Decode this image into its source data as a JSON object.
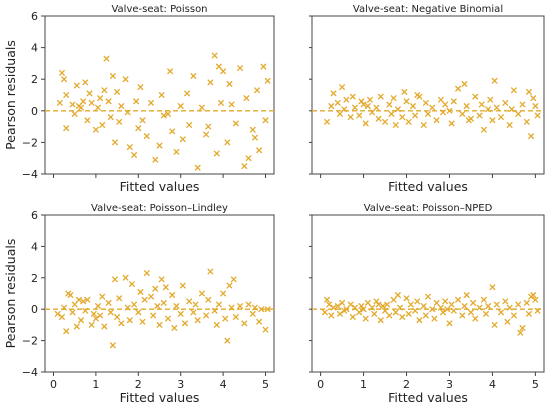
{
  "colors": {
    "marker": "#E3A92B",
    "refline": "#E3A92B",
    "axes": "#444444"
  },
  "chart_data": [
    {
      "type": "scatter",
      "title": "Valve-seat: Poisson",
      "xlabel": "Fitted values",
      "ylabel": "Pearson residuals",
      "xlim": [
        -0.2,
        5.2
      ],
      "ylim": [
        -4,
        6
      ],
      "xticks": [],
      "yticks": [
        -4,
        -2,
        0,
        2,
        4,
        6
      ],
      "reference_line_y": 0,
      "grid": false,
      "points": [
        [
          0.15,
          0.5
        ],
        [
          0.2,
          2.4
        ],
        [
          0.25,
          2.0
        ],
        [
          0.3,
          -1.1
        ],
        [
          0.3,
          1.0
        ],
        [
          0.45,
          0.4
        ],
        [
          0.5,
          -0.2
        ],
        [
          0.55,
          1.6
        ],
        [
          0.6,
          0.3
        ],
        [
          0.65,
          0.2
        ],
        [
          0.7,
          0.6
        ],
        [
          0.75,
          1.8
        ],
        [
          0.8,
          -0.6
        ],
        [
          0.85,
          1.1
        ],
        [
          0.9,
          0.5
        ],
        [
          1.0,
          -1.2
        ],
        [
          1.05,
          0.2
        ],
        [
          1.1,
          0.8
        ],
        [
          1.15,
          -0.9
        ],
        [
          1.2,
          1.3
        ],
        [
          1.25,
          3.3
        ],
        [
          1.3,
          0.6
        ],
        [
          1.4,
          2.2
        ],
        [
          1.45,
          -2.0
        ],
        [
          1.5,
          1.2
        ],
        [
          1.55,
          -0.7
        ],
        [
          1.6,
          0.3
        ],
        [
          1.7,
          2.0
        ],
        [
          1.75,
          -0.1
        ],
        [
          1.8,
          -2.3
        ],
        [
          1.9,
          -2.8
        ],
        [
          1.95,
          0.6
        ],
        [
          2.0,
          -1.1
        ],
        [
          2.05,
          1.5
        ],
        [
          2.1,
          -0.6
        ],
        [
          2.2,
          -1.6
        ],
        [
          2.3,
          0.5
        ],
        [
          2.4,
          -3.1
        ],
        [
          2.5,
          -2.2
        ],
        [
          2.55,
          1.0
        ],
        [
          2.6,
          -0.3
        ],
        [
          2.7,
          -0.2
        ],
        [
          2.8,
          -1.3
        ],
        [
          2.9,
          -2.6
        ],
        [
          3.0,
          0.3
        ],
        [
          3.05,
          -1.8
        ],
        [
          3.15,
          1.1
        ],
        [
          3.2,
          -0.9
        ],
        [
          3.3,
          2.2
        ],
        [
          3.4,
          -3.6
        ],
        [
          3.5,
          0.2
        ],
        [
          3.6,
          -1.5
        ],
        [
          3.65,
          -1.0
        ],
        [
          3.7,
          1.8
        ],
        [
          3.8,
          3.5
        ],
        [
          3.85,
          -2.7
        ],
        [
          3.9,
          2.8
        ],
        [
          3.95,
          0.5
        ],
        [
          4.0,
          2.5
        ],
        [
          4.1,
          -2.0
        ],
        [
          4.15,
          1.7
        ],
        [
          4.2,
          0.4
        ],
        [
          4.3,
          -0.8
        ],
        [
          4.4,
          2.7
        ],
        [
          4.5,
          -3.5
        ],
        [
          4.6,
          -3.0
        ],
        [
          4.7,
          -1.2
        ],
        [
          4.75,
          -1.7
        ],
        [
          4.8,
          1.3
        ],
        [
          4.85,
          -2.5
        ],
        [
          4.95,
          2.8
        ],
        [
          5.0,
          -0.6
        ],
        [
          5.05,
          1.9
        ],
        [
          4.55,
          0.8
        ],
        [
          2.75,
          2.5
        ],
        [
          1.35,
          -0.4
        ]
      ]
    },
    {
      "type": "scatter",
      "title": "Valve-seat: Negative Binomial",
      "xlabel": "Fitted values",
      "ylabel": "",
      "xlim": [
        -0.2,
        5.2
      ],
      "ylim": [
        -4,
        6
      ],
      "xticks": [],
      "yticks": [],
      "reference_line_y": 0,
      "grid": false,
      "points": [
        [
          0.15,
          -0.7
        ],
        [
          0.25,
          0.3
        ],
        [
          0.3,
          1.1
        ],
        [
          0.4,
          0.5
        ],
        [
          0.45,
          -0.2
        ],
        [
          0.5,
          1.5
        ],
        [
          0.55,
          0.1
        ],
        [
          0.6,
          0.7
        ],
        [
          0.7,
          -0.4
        ],
        [
          0.75,
          0.9
        ],
        [
          0.8,
          0.2
        ],
        [
          0.9,
          -0.3
        ],
        [
          0.95,
          0.6
        ],
        [
          1.0,
          0.4
        ],
        [
          1.05,
          -0.8
        ],
        [
          1.1,
          0.3
        ],
        [
          1.15,
          0.7
        ],
        [
          1.2,
          -0.1
        ],
        [
          1.3,
          0.2
        ],
        [
          1.35,
          -0.5
        ],
        [
          1.4,
          0.9
        ],
        [
          1.5,
          -0.7
        ],
        [
          1.6,
          0.4
        ],
        [
          1.65,
          -0.2
        ],
        [
          1.7,
          0.8
        ],
        [
          1.8,
          0.1
        ],
        [
          1.9,
          -0.4
        ],
        [
          1.95,
          1.2
        ],
        [
          2.0,
          0.6
        ],
        [
          2.05,
          -0.7
        ],
        [
          2.15,
          0.3
        ],
        [
          2.2,
          -0.3
        ],
        [
          2.3,
          0.9
        ],
        [
          2.4,
          -0.9
        ],
        [
          2.45,
          0.5
        ],
        [
          2.5,
          -0.2
        ],
        [
          2.6,
          0.2
        ],
        [
          2.7,
          -0.6
        ],
        [
          2.8,
          0.7
        ],
        [
          2.85,
          -0.1
        ],
        [
          2.9,
          0.4
        ],
        [
          3.0,
          0.0
        ],
        [
          3.05,
          -0.8
        ],
        [
          3.1,
          0.6
        ],
        [
          3.2,
          1.4
        ],
        [
          3.3,
          -0.2
        ],
        [
          3.35,
          1.7
        ],
        [
          3.4,
          0.3
        ],
        [
          3.5,
          -0.5
        ],
        [
          3.6,
          0.9
        ],
        [
          3.7,
          -0.3
        ],
        [
          3.75,
          0.4
        ],
        [
          3.8,
          -1.2
        ],
        [
          3.9,
          0.1
        ],
        [
          3.95,
          0.7
        ],
        [
          4.0,
          -0.6
        ],
        [
          4.05,
          1.9
        ],
        [
          4.1,
          0.2
        ],
        [
          4.2,
          -0.4
        ],
        [
          4.3,
          0.5
        ],
        [
          4.4,
          -0.9
        ],
        [
          4.45,
          0.1
        ],
        [
          4.5,
          1.3
        ],
        [
          4.6,
          -0.2
        ],
        [
          4.7,
          0.4
        ],
        [
          4.8,
          -0.7
        ],
        [
          4.85,
          1.2
        ],
        [
          4.9,
          -1.6
        ],
        [
          4.95,
          0.8
        ],
        [
          5.0,
          0.3
        ],
        [
          5.05,
          -0.3
        ],
        [
          3.45,
          -0.6
        ],
        [
          1.75,
          -0.9
        ],
        [
          2.25,
          1.0
        ]
      ]
    },
    {
      "type": "scatter",
      "title": "Valve-seat: Poisson–Lindley",
      "xlabel": "Fitted values",
      "ylabel": "Pearson residuals",
      "xlim": [
        -0.2,
        5.2
      ],
      "ylim": [
        -4,
        6
      ],
      "xticks": [
        0,
        1,
        2,
        3,
        4,
        5
      ],
      "yticks": [
        -4,
        -2,
        0,
        2,
        4,
        6
      ],
      "reference_line_y": 0,
      "grid": false,
      "points": [
        [
          0.1,
          -0.3
        ],
        [
          0.2,
          -0.5
        ],
        [
          0.25,
          0.1
        ],
        [
          0.3,
          -1.4
        ],
        [
          0.35,
          1.0
        ],
        [
          0.4,
          0.9
        ],
        [
          0.45,
          -0.2
        ],
        [
          0.5,
          0.3
        ],
        [
          0.55,
          -1.1
        ],
        [
          0.6,
          0.6
        ],
        [
          0.65,
          -0.7
        ],
        [
          0.7,
          0.5
        ],
        [
          0.75,
          -0.1
        ],
        [
          0.8,
          0.6
        ],
        [
          0.9,
          -1.0
        ],
        [
          0.95,
          -0.3
        ],
        [
          1.0,
          -0.6
        ],
        [
          1.05,
          0.2
        ],
        [
          1.1,
          -0.4
        ],
        [
          1.15,
          0.8
        ],
        [
          1.2,
          -1.1
        ],
        [
          1.3,
          0.4
        ],
        [
          1.35,
          -0.2
        ],
        [
          1.4,
          -2.3
        ],
        [
          1.45,
          1.9
        ],
        [
          1.5,
          -0.5
        ],
        [
          1.55,
          0.7
        ],
        [
          1.6,
          -0.9
        ],
        [
          1.7,
          2.0
        ],
        [
          1.75,
          0.1
        ],
        [
          1.8,
          -0.7
        ],
        [
          1.85,
          1.6
        ],
        [
          1.9,
          0.3
        ],
        [
          2.0,
          -0.2
        ],
        [
          2.05,
          1.1
        ],
        [
          2.1,
          -0.8
        ],
        [
          2.15,
          0.6
        ],
        [
          2.2,
          2.3
        ],
        [
          2.3,
          0.8
        ],
        [
          2.35,
          -0.4
        ],
        [
          2.4,
          1.3
        ],
        [
          2.45,
          0.2
        ],
        [
          2.5,
          -1.0
        ],
        [
          2.55,
          1.9
        ],
        [
          2.6,
          0.4
        ],
        [
          2.7,
          -0.6
        ],
        [
          2.8,
          0.9
        ],
        [
          2.85,
          -1.2
        ],
        [
          2.9,
          0.2
        ],
        [
          3.0,
          -0.3
        ],
        [
          3.05,
          1.5
        ],
        [
          3.1,
          -0.9
        ],
        [
          3.2,
          0.5
        ],
        [
          3.3,
          -0.2
        ],
        [
          3.35,
          0.3
        ],
        [
          3.4,
          -0.7
        ],
        [
          3.5,
          1.0
        ],
        [
          3.6,
          -0.4
        ],
        [
          3.65,
          0.6
        ],
        [
          3.7,
          2.4
        ],
        [
          3.8,
          -0.1
        ],
        [
          3.85,
          -1.0
        ],
        [
          3.9,
          0.3
        ],
        [
          4.0,
          1.0
        ],
        [
          4.05,
          -0.6
        ],
        [
          4.1,
          -2.0
        ],
        [
          4.15,
          1.5
        ],
        [
          4.2,
          0.1
        ],
        [
          4.3,
          -0.5
        ],
        [
          4.4,
          0.2
        ],
        [
          4.5,
          -0.9
        ],
        [
          4.6,
          0.3
        ],
        [
          4.7,
          -0.3
        ],
        [
          4.75,
          0.1
        ],
        [
          4.85,
          -0.8
        ],
        [
          4.9,
          0.0
        ],
        [
          5.0,
          -1.3
        ],
        [
          5.05,
          0.0
        ],
        [
          4.25,
          1.9
        ],
        [
          2.65,
          1.4
        ]
      ]
    },
    {
      "type": "scatter",
      "title": "Valve-seat: Poisson–NPED",
      "xlabel": "Fitted values",
      "ylabel": "",
      "xlim": [
        -0.2,
        5.2
      ],
      "ylim": [
        -4,
        6
      ],
      "xticks": [
        0,
        1,
        2,
        3,
        4,
        5
      ],
      "yticks": [],
      "reference_line_y": 0,
      "grid": false,
      "points": [
        [
          0.1,
          -0.2
        ],
        [
          0.15,
          0.6
        ],
        [
          0.2,
          0.3
        ],
        [
          0.25,
          -0.4
        ],
        [
          0.3,
          0.1
        ],
        [
          0.4,
          0.2
        ],
        [
          0.45,
          -0.3
        ],
        [
          0.5,
          0.4
        ],
        [
          0.55,
          -0.1
        ],
        [
          0.6,
          0.0
        ],
        [
          0.7,
          0.3
        ],
        [
          0.75,
          -0.5
        ],
        [
          0.8,
          0.1
        ],
        [
          0.9,
          -0.2
        ],
        [
          0.95,
          0.2
        ],
        [
          1.0,
          0.0
        ],
        [
          1.05,
          -0.6
        ],
        [
          1.1,
          0.4
        ],
        [
          1.2,
          0.1
        ],
        [
          1.25,
          -0.3
        ],
        [
          1.3,
          0.5
        ],
        [
          1.4,
          -0.7
        ],
        [
          1.45,
          0.2
        ],
        [
          1.5,
          -0.1
        ],
        [
          1.55,
          0.3
        ],
        [
          1.6,
          -0.4
        ],
        [
          1.7,
          0.6
        ],
        [
          1.75,
          -0.2
        ],
        [
          1.8,
          0.9
        ],
        [
          1.85,
          0.1
        ],
        [
          1.9,
          -0.5
        ],
        [
          2.0,
          0.7
        ],
        [
          2.05,
          -0.3
        ],
        [
          2.1,
          0.3
        ],
        [
          2.2,
          -0.1
        ],
        [
          2.25,
          0.5
        ],
        [
          2.3,
          -0.7
        ],
        [
          2.4,
          0.2
        ],
        [
          2.45,
          -0.4
        ],
        [
          2.5,
          0.8
        ],
        [
          2.6,
          0.0
        ],
        [
          2.65,
          -0.6
        ],
        [
          2.7,
          0.4
        ],
        [
          2.8,
          0.1
        ],
        [
          2.85,
          -0.2
        ],
        [
          2.9,
          0.5
        ],
        [
          3.0,
          -0.9
        ],
        [
          3.05,
          0.3
        ],
        [
          3.1,
          -0.1
        ],
        [
          3.2,
          0.6
        ],
        [
          3.3,
          -0.4
        ],
        [
          3.35,
          0.2
        ],
        [
          3.4,
          0.9
        ],
        [
          3.5,
          -0.2
        ],
        [
          3.55,
          0.4
        ],
        [
          3.6,
          -0.6
        ],
        [
          3.7,
          0.1
        ],
        [
          3.8,
          0.6
        ],
        [
          3.85,
          -0.3
        ],
        [
          3.9,
          0.2
        ],
        [
          4.0,
          1.4
        ],
        [
          4.05,
          -1.0
        ],
        [
          4.1,
          0.3
        ],
        [
          4.2,
          -0.2
        ],
        [
          4.3,
          0.5
        ],
        [
          4.35,
          -0.8
        ],
        [
          4.4,
          0.1
        ],
        [
          4.5,
          -0.4
        ],
        [
          4.6,
          0.3
        ],
        [
          4.65,
          -1.5
        ],
        [
          4.7,
          -1.2
        ],
        [
          4.8,
          0.4
        ],
        [
          4.85,
          -0.3
        ],
        [
          4.9,
          0.8
        ],
        [
          4.95,
          0.9
        ],
        [
          5.0,
          0.6
        ],
        [
          5.05,
          -0.1
        ],
        [
          2.95,
          0.0
        ],
        [
          1.35,
          0.3
        ]
      ]
    }
  ]
}
